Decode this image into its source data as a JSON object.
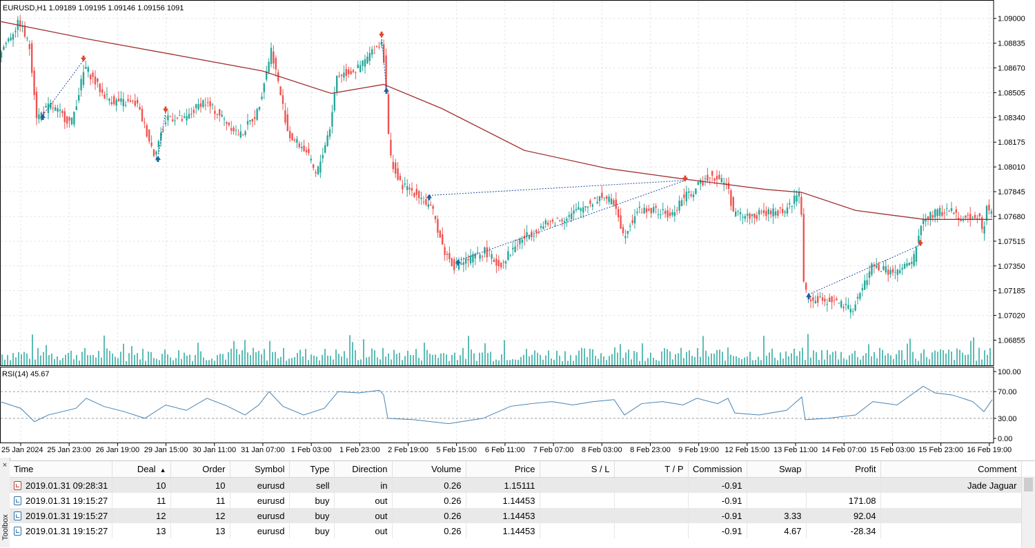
{
  "chart": {
    "title": "EURUSD,H1  1.09189 1.09195 1.09146 1.09156  1091",
    "colors": {
      "bull": "#26a69a",
      "bear": "#ef5350",
      "ma": "#a0302f",
      "rsi": "#4682b4",
      "grid": "#e5e5e5",
      "buy_arrow": "#1f5fa6",
      "sell_arrow": "#e0452b",
      "volume": "#26a69a"
    },
    "price_axis": [
      "1.09000",
      "1.08835",
      "1.08670",
      "1.08505",
      "1.08340",
      "1.08175",
      "1.08010",
      "1.07845",
      "1.07680",
      "1.07515",
      "1.07350",
      "1.07185",
      "1.07020",
      "1.06855"
    ],
    "price_range": [
      1.0677,
      1.0904
    ],
    "rsi": {
      "label": "RSI(14) 45.67",
      "axis": [
        "100.00",
        "70.00",
        "30.00",
        "0.00"
      ],
      "levels": [
        30,
        70
      ]
    },
    "time_axis": [
      "25 Jan 2024",
      "25 Jan 23:00",
      "26 Jan 19:00",
      "29 Jan 15:00",
      "30 Jan 11:00",
      "31 Jan 07:00",
      "1 Feb 03:00",
      "1 Feb 23:00",
      "2 Feb 19:00",
      "5 Feb 15:00",
      "6 Feb 11:00",
      "7 Feb 07:00",
      "8 Feb 03:00",
      "8 Feb 23:00",
      "9 Feb 19:00",
      "12 Feb 15:00",
      "13 Feb 11:00",
      "14 Feb 07:00",
      "15 Feb 03:00",
      "15 Feb 23:00",
      "16 Feb 19:00"
    ],
    "price_path": [
      [
        0,
        1.0876
      ],
      [
        30,
        1.0898
      ],
      [
        45,
        1.088
      ],
      [
        55,
        1.0834
      ],
      [
        75,
        1.0842
      ],
      [
        105,
        1.083
      ],
      [
        125,
        1.0868
      ],
      [
        150,
        1.085
      ],
      [
        165,
        1.0845
      ],
      [
        200,
        1.0843
      ],
      [
        225,
        1.081
      ],
      [
        245,
        1.0835
      ],
      [
        270,
        1.0832
      ],
      [
        295,
        1.0845
      ],
      [
        315,
        1.0838
      ],
      [
        350,
        1.0822
      ],
      [
        375,
        1.0838
      ],
      [
        395,
        1.088
      ],
      [
        420,
        1.0822
      ],
      [
        445,
        1.0812
      ],
      [
        460,
        1.0795
      ],
      [
        480,
        1.0828
      ],
      [
        490,
        1.0862
      ],
      [
        520,
        1.0866
      ],
      [
        545,
        1.088
      ],
      [
        556,
        1.0885
      ],
      [
        561,
        1.0855
      ],
      [
        566,
        1.081
      ],
      [
        580,
        1.079
      ],
      [
        610,
        1.0782
      ],
      [
        630,
        1.077
      ],
      [
        645,
        1.0745
      ],
      [
        660,
        1.0735
      ],
      [
        685,
        1.074
      ],
      [
        705,
        1.0745
      ],
      [
        725,
        1.0735
      ],
      [
        755,
        1.0752
      ],
      [
        790,
        1.0762
      ],
      [
        825,
        1.0768
      ],
      [
        850,
        1.0775
      ],
      [
        875,
        1.0782
      ],
      [
        895,
        1.0775
      ],
      [
        905,
        1.0755
      ],
      [
        925,
        1.0772
      ],
      [
        950,
        1.0772
      ],
      [
        975,
        1.0768
      ],
      [
        990,
        1.078
      ],
      [
        1005,
        1.0784
      ],
      [
        1030,
        1.0796
      ],
      [
        1055,
        1.079
      ],
      [
        1065,
        1.077
      ],
      [
        1085,
        1.0768
      ],
      [
        1110,
        1.077
      ],
      [
        1140,
        1.0772
      ],
      [
        1162,
        1.0785
      ],
      [
        1167,
        1.0718
      ],
      [
        1180,
        1.0712
      ],
      [
        1210,
        1.0712
      ],
      [
        1235,
        1.0705
      ],
      [
        1250,
        1.0718
      ],
      [
        1265,
        1.0735
      ],
      [
        1300,
        1.073
      ],
      [
        1325,
        1.0738
      ],
      [
        1338,
        1.0765
      ],
      [
        1355,
        1.077
      ],
      [
        1380,
        1.0772
      ],
      [
        1400,
        1.0766
      ],
      [
        1420,
        1.077
      ],
      [
        1426,
        1.0755
      ],
      [
        1432,
        1.0775
      ],
      [
        1438,
        1.077
      ]
    ],
    "ma_path": [
      [
        0,
        1.0898
      ],
      [
        130,
        1.0886
      ],
      [
        250,
        1.0876
      ],
      [
        380,
        1.0865
      ],
      [
        480,
        1.085
      ],
      [
        556,
        1.0856
      ],
      [
        640,
        1.084
      ],
      [
        760,
        1.0812
      ],
      [
        880,
        1.08
      ],
      [
        990,
        1.0793
      ],
      [
        1110,
        1.0786
      ],
      [
        1162,
        1.0784
      ],
      [
        1240,
        1.0772
      ],
      [
        1340,
        1.0766
      ],
      [
        1438,
        1.0766
      ]
    ],
    "rsi_path": [
      [
        0,
        55
      ],
      [
        30,
        45
      ],
      [
        50,
        25
      ],
      [
        70,
        35
      ],
      [
        110,
        45
      ],
      [
        125,
        60
      ],
      [
        150,
        48
      ],
      [
        180,
        40
      ],
      [
        210,
        30
      ],
      [
        240,
        50
      ],
      [
        270,
        42
      ],
      [
        300,
        60
      ],
      [
        330,
        48
      ],
      [
        355,
        35
      ],
      [
        375,
        50
      ],
      [
        390,
        70
      ],
      [
        410,
        48
      ],
      [
        440,
        35
      ],
      [
        470,
        45
      ],
      [
        490,
        70
      ],
      [
        520,
        68
      ],
      [
        550,
        72
      ],
      [
        556,
        65
      ],
      [
        562,
        30
      ],
      [
        600,
        28
      ],
      [
        650,
        22
      ],
      [
        700,
        30
      ],
      [
        740,
        48
      ],
      [
        770,
        52
      ],
      [
        800,
        55
      ],
      [
        830,
        50
      ],
      [
        860,
        55
      ],
      [
        890,
        58
      ],
      [
        905,
        35
      ],
      [
        930,
        52
      ],
      [
        960,
        55
      ],
      [
        990,
        50
      ],
      [
        1010,
        60
      ],
      [
        1040,
        52
      ],
      [
        1055,
        60
      ],
      [
        1065,
        38
      ],
      [
        1100,
        35
      ],
      [
        1140,
        42
      ],
      [
        1162,
        62
      ],
      [
        1167,
        28
      ],
      [
        1200,
        30
      ],
      [
        1240,
        35
      ],
      [
        1265,
        55
      ],
      [
        1300,
        50
      ],
      [
        1338,
        78
      ],
      [
        1355,
        68
      ],
      [
        1380,
        65
      ],
      [
        1410,
        55
      ],
      [
        1426,
        40
      ],
      [
        1438,
        58
      ]
    ],
    "trades": [
      {
        "x1": 62,
        "p1": 1.08355,
        "x2": 121,
        "p2": 1.0872,
        "open": "buy"
      },
      {
        "x1": 229,
        "p1": 1.08075,
        "x2": 240,
        "p2": 1.0838,
        "open": "buy"
      },
      {
        "x1": 553,
        "p1": 1.0888,
        "x2": 560,
        "p2": 1.0853,
        "open": "sell"
      },
      {
        "x1": 622,
        "p1": 1.0782,
        "x2": 993,
        "p2": 1.0792,
        "open": "buy"
      },
      {
        "x1": 664,
        "p1": 1.07385,
        "x2": 993,
        "p2": 1.0792,
        "open": "buy"
      },
      {
        "x1": 1172,
        "p1": 1.0716,
        "x2": 1334,
        "p2": 1.0749,
        "open": "buy"
      }
    ]
  },
  "terminal": {
    "columns": [
      "Time",
      "Deal",
      "Order",
      "Symbol",
      "Type",
      "Direction",
      "Volume",
      "Price",
      "S / L",
      "T / P",
      "Commission",
      "Swap",
      "Profit",
      "Comment"
    ],
    "sort_indicator": "▲",
    "rows": [
      {
        "icon": "sell",
        "time": "2019.01.31 09:28:31",
        "deal": "10",
        "order": "10",
        "symbol": "eurusd",
        "type": "sell",
        "direction": "in",
        "volume": "0.26",
        "price": "1.15111",
        "sl": "",
        "tp": "",
        "commission": "-0.91",
        "swap": "",
        "profit": "",
        "comment": "Jade Jaguar"
      },
      {
        "icon": "buy",
        "time": "2019.01.31 19:15:27",
        "deal": "11",
        "order": "11",
        "symbol": "eurusd",
        "type": "buy",
        "direction": "out",
        "volume": "0.26",
        "price": "1.14453",
        "sl": "",
        "tp": "",
        "commission": "-0.91",
        "swap": "",
        "profit": "171.08",
        "comment": ""
      },
      {
        "icon": "buy",
        "time": "2019.01.31 19:15:27",
        "deal": "12",
        "order": "12",
        "symbol": "eurusd",
        "type": "buy",
        "direction": "out",
        "volume": "0.26",
        "price": "1.14453",
        "sl": "",
        "tp": "",
        "commission": "-0.91",
        "swap": "3.33",
        "profit": "92.04",
        "comment": ""
      },
      {
        "icon": "buy",
        "time": "2019.01.31 19:15:27",
        "deal": "13",
        "order": "13",
        "symbol": "eurusd",
        "type": "buy",
        "direction": "out",
        "volume": "0.26",
        "price": "1.14453",
        "sl": "",
        "tp": "",
        "commission": "-0.91",
        "swap": "4.67",
        "profit": "-28.34",
        "comment": ""
      }
    ]
  },
  "toolbox": {
    "label": "Toolbox",
    "close": "×"
  }
}
